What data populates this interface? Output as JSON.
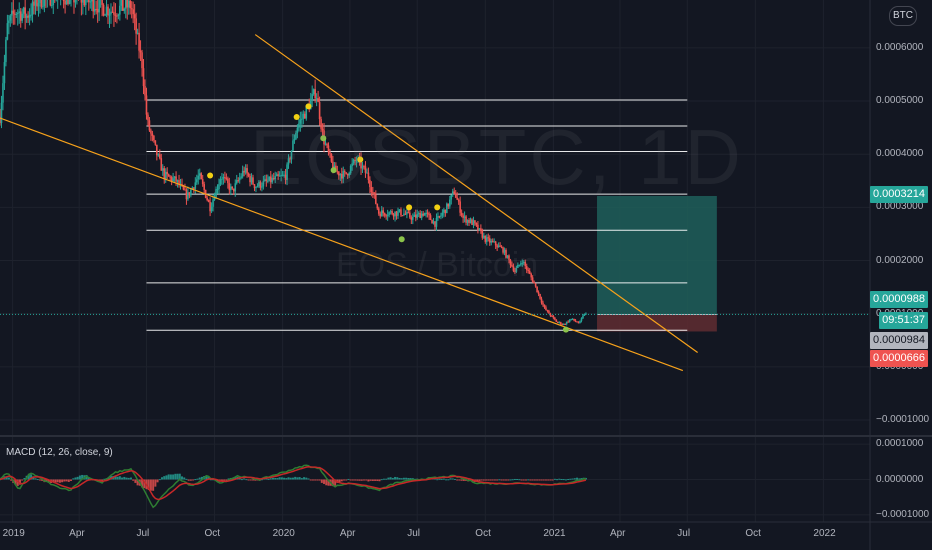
{
  "watermark": {
    "symbol_timeframe": "EOSBTC, 1D",
    "pair_name": "EOS / Bitcoin"
  },
  "currency_chip": "BTC",
  "colors": {
    "background": "#131722",
    "grid": "#1e222d",
    "up": "#26a69a",
    "down": "#ef5350",
    "trendline": "#f7a21b",
    "level": "#ffffff",
    "target_zone": "#1e5f5a",
    "stop_zone": "#5c2b31",
    "macd_line": "#2e7d32",
    "signal_line": "#c62828",
    "marker_yellow": "#f2d013",
    "marker_green": "#8bc34a"
  },
  "badges": {
    "target": "0.0003214",
    "last_price": "0.0000988",
    "countdown": "09:51:37",
    "entry": "0.0000984",
    "stop": "0.0000666"
  },
  "chart_data": [
    {
      "type": "candlestick",
      "title": "EOSBTC, 1D",
      "subtitle": "EOS / Bitcoin",
      "y_tick_labels": [
        "0.0006000",
        "0.0005000",
        "0.0004000",
        "0.0003000",
        "0.0002000",
        "0.0001000",
        "0.0000000",
        "−0.0001000"
      ],
      "x_tick_labels": [
        "2019",
        "Apr",
        "Jul",
        "Oct",
        "2020",
        "Apr",
        "Jul",
        "Oct",
        "2021",
        "Apr",
        "Jul",
        "Oct",
        "2022"
      ],
      "ylim": [
        -0.00013,
        0.00069
      ],
      "xlim": [
        "2018-12-15",
        "2022-03-05"
      ],
      "price_path": [
        [
          "2018-12-15",
          0.00047
        ],
        [
          "2018-12-25",
          0.00064
        ],
        [
          "2019-01-05",
          0.00067
        ],
        [
          "2019-01-20",
          0.00066
        ],
        [
          "2019-02-05",
          0.00069
        ],
        [
          "2019-03-01",
          0.0007
        ],
        [
          "2019-04-10",
          0.00069
        ],
        [
          "2019-05-15",
          0.00067
        ],
        [
          "2019-06-10",
          0.00068
        ],
        [
          "2019-06-25",
          0.00057
        ],
        [
          "2019-07-02",
          0.00046
        ],
        [
          "2019-07-15",
          0.0004
        ],
        [
          "2019-07-25",
          0.00036
        ],
        [
          "2019-08-10",
          0.00035
        ],
        [
          "2019-08-25",
          0.00032
        ],
        [
          "2019-09-10",
          0.00036
        ],
        [
          "2019-09-25",
          0.0003
        ],
        [
          "2019-10-10",
          0.00036
        ],
        [
          "2019-10-25",
          0.00033
        ],
        [
          "2019-11-10",
          0.00037
        ],
        [
          "2019-11-25",
          0.00034
        ],
        [
          "2019-12-15",
          0.00035
        ],
        [
          "2020-01-05",
          0.00036
        ],
        [
          "2020-01-20",
          0.00045
        ],
        [
          "2020-02-05",
          0.00049
        ],
        [
          "2020-02-15",
          0.00052
        ],
        [
          "2020-02-25",
          0.00043
        ],
        [
          "2020-03-10",
          0.00037
        ],
        [
          "2020-03-25",
          0.00036
        ],
        [
          "2020-04-10",
          0.00039
        ],
        [
          "2020-04-25",
          0.00036
        ],
        [
          "2020-05-10",
          0.00029
        ],
        [
          "2020-05-25",
          0.00029
        ],
        [
          "2020-06-10",
          0.00029
        ],
        [
          "2020-06-25",
          0.00028
        ],
        [
          "2020-07-10",
          0.00029
        ],
        [
          "2020-07-25",
          0.00027
        ],
        [
          "2020-08-10",
          0.0003
        ],
        [
          "2020-08-20",
          0.00033
        ],
        [
          "2020-09-01",
          0.00028
        ],
        [
          "2020-09-15",
          0.00027
        ],
        [
          "2020-10-01",
          0.00024
        ],
        [
          "2020-10-15",
          0.00023
        ],
        [
          "2020-10-25",
          0.00022
        ],
        [
          "2020-11-10",
          0.00018
        ],
        [
          "2020-11-20",
          0.0002
        ],
        [
          "2020-12-05",
          0.00016
        ],
        [
          "2020-12-20",
          0.00011
        ],
        [
          "2021-01-05",
          8.5e-05
        ],
        [
          "2021-01-15",
          8e-05
        ],
        [
          "2021-01-25",
          9e-05
        ],
        [
          "2021-02-05",
          8.2e-05
        ],
        [
          "2021-02-12",
          0.0001
        ],
        [
          "2021-02-15",
          9.88e-05
        ]
      ],
      "horizontal_levels": [
        0.000502,
        0.000453,
        0.000405,
        0.000325,
        0.000257,
        0.000158,
        6.9e-05
      ],
      "horizontal_levels_range": [
        "2019-07-01",
        "2021-07-01"
      ],
      "trendlines": [
        {
          "from": [
            "2018-12-15",
            0.000468
          ],
          "to": [
            "2021-06-25",
            -7e-06
          ]
        },
        {
          "from": [
            "2019-11-25",
            0.000625
          ],
          "to": [
            "2021-07-15",
            2.7e-05
          ]
        }
      ],
      "position": {
        "range": [
          "2021-03-01",
          "2021-08-10"
        ],
        "target": 0.0003214,
        "entry": 9.84e-05,
        "stop": 6.66e-05
      },
      "signal_markers": [
        {
          "x": "2019-09-25",
          "y": 0.00036,
          "color": "#f2d013"
        },
        {
          "x": "2020-01-20",
          "y": 0.00047,
          "color": "#f2d013"
        },
        {
          "x": "2020-02-05",
          "y": 0.00049,
          "color": "#f2d013"
        },
        {
          "x": "2020-02-25",
          "y": 0.00043,
          "color": "#8bc34a"
        },
        {
          "x": "2020-03-10",
          "y": 0.00037,
          "color": "#8bc34a"
        },
        {
          "x": "2020-04-15",
          "y": 0.00039,
          "color": "#f2d013"
        },
        {
          "x": "2020-06-20",
          "y": 0.0003,
          "color": "#f2d013"
        },
        {
          "x": "2020-06-10",
          "y": 0.00024,
          "color": "#8bc34a"
        },
        {
          "x": "2020-07-28",
          "y": 0.0003,
          "color": "#f2d013"
        },
        {
          "x": "2021-01-18",
          "y": 7e-05,
          "color": "#8bc34a"
        }
      ]
    },
    {
      "type": "macd",
      "title": "MACD (12, 26, close, 9)",
      "y_tick_labels": [
        "0.0001000",
        "0.0000000",
        "−0.0001000"
      ],
      "ylim": [
        -0.00012,
        0.00012
      ],
      "macd_path": [
        [
          "2018-12-15",
          0.0
        ],
        [
          "2018-12-25",
          2e-05
        ],
        [
          "2019-01-10",
          -3e-05
        ],
        [
          "2019-01-25",
          2e-05
        ],
        [
          "2019-02-10",
          0.0
        ],
        [
          "2019-03-01",
          -2e-05
        ],
        [
          "2019-03-20",
          -3e-05
        ],
        [
          "2019-04-10",
          1e-05
        ],
        [
          "2019-05-01",
          -1e-05
        ],
        [
          "2019-05-20",
          2e-05
        ],
        [
          "2019-06-10",
          3e-05
        ],
        [
          "2019-06-25",
          -2e-05
        ],
        [
          "2019-07-10",
          -8e-05
        ],
        [
          "2019-07-25",
          -4e-05
        ],
        [
          "2019-08-15",
          0.0
        ],
        [
          "2019-09-01",
          -2e-05
        ],
        [
          "2019-09-20",
          1e-05
        ],
        [
          "2019-10-10",
          -1e-05
        ],
        [
          "2019-11-01",
          1e-05
        ],
        [
          "2019-12-01",
          0.0
        ],
        [
          "2020-01-01",
          2e-05
        ],
        [
          "2020-02-01",
          4e-05
        ],
        [
          "2020-02-20",
          3e-05
        ],
        [
          "2020-03-10",
          -2e-05
        ],
        [
          "2020-04-01",
          -1e-05
        ],
        [
          "2020-05-10",
          -3e-05
        ],
        [
          "2020-06-01",
          -1e-05
        ],
        [
          "2020-07-01",
          0.0
        ],
        [
          "2020-08-20",
          1e-05
        ],
        [
          "2020-09-20",
          -1e-05
        ],
        [
          "2020-10-20",
          -1.2e-05
        ],
        [
          "2020-11-20",
          -1e-05
        ],
        [
          "2020-12-20",
          -1.5e-05
        ],
        [
          "2021-01-15",
          -1.2e-05
        ],
        [
          "2021-02-15",
          3e-06
        ]
      ]
    }
  ]
}
